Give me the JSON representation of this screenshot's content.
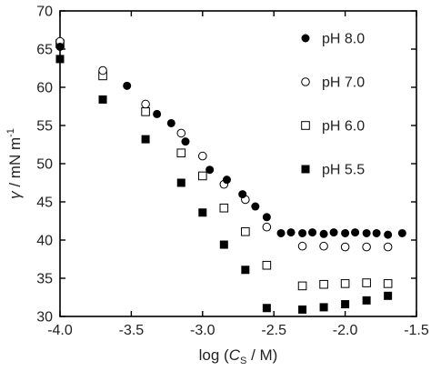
{
  "chart_data": {
    "type": "scatter",
    "xlabel": {
      "pre": "log (",
      "var": "C",
      "sub": "S",
      "post": " / M)"
    },
    "ylabel": {
      "var": "γ",
      "unit": " / mN m",
      "sup": "-1"
    },
    "xlim": [
      -4.0,
      -1.5
    ],
    "ylim": [
      30,
      70
    ],
    "x_ticks": [
      -4.0,
      -3.5,
      -3.0,
      -2.5,
      -2.0,
      -1.5
    ],
    "x_tick_labels": [
      "-4.0",
      "-3.5",
      "-3.0",
      "-2.5",
      "-2.0",
      "-1.5"
    ],
    "y_ticks": [
      30,
      35,
      40,
      45,
      50,
      55,
      60,
      65,
      70
    ],
    "y_tick_labels": [
      "30",
      "35",
      "40",
      "45",
      "50",
      "55",
      "60",
      "65",
      "70"
    ],
    "grid": false,
    "legend_position": "top-right",
    "series": [
      {
        "name": "pH 8.0",
        "marker": "filled-circle",
        "x": [
          -4.0,
          -3.53,
          -3.32,
          -3.22,
          -3.12,
          -2.95,
          -2.83,
          -2.72,
          -2.63,
          -2.55,
          -2.45,
          -2.38,
          -2.3,
          -2.23,
          -2.15,
          -2.08,
          -2.0,
          -1.93,
          -1.85,
          -1.78,
          -1.7,
          -1.6
        ],
        "y": [
          65.3,
          60.2,
          56.5,
          55.3,
          52.9,
          49.2,
          47.9,
          46.0,
          44.4,
          43.0,
          40.9,
          41.0,
          40.9,
          41.0,
          40.8,
          41.0,
          40.9,
          41.0,
          40.9,
          40.9,
          40.7,
          40.9
        ]
      },
      {
        "name": "pH 7.0",
        "marker": "open-circle",
        "x": [
          -4.0,
          -3.7,
          -3.4,
          -3.15,
          -3.0,
          -2.85,
          -2.7,
          -2.55,
          -2.3,
          -2.15,
          -2.0,
          -1.85,
          -1.7
        ],
        "y": [
          66.0,
          62.2,
          57.8,
          54.0,
          51.0,
          47.3,
          45.3,
          41.7,
          39.2,
          39.2,
          39.1,
          39.1,
          39.1
        ]
      },
      {
        "name": "pH 6.0",
        "marker": "open-square",
        "x": [
          -4.0,
          -3.7,
          -3.4,
          -3.15,
          -3.0,
          -2.85,
          -2.7,
          -2.55,
          -2.3,
          -2.15,
          -2.0,
          -1.85,
          -1.7
        ],
        "y": [
          65.7,
          61.5,
          56.8,
          51.4,
          48.4,
          44.2,
          41.1,
          36.7,
          34.0,
          34.2,
          34.3,
          34.4,
          34.3
        ]
      },
      {
        "name": "pH 5.5",
        "marker": "filled-square",
        "x": [
          -4.0,
          -3.7,
          -3.4,
          -3.15,
          -3.0,
          -2.85,
          -2.7,
          -2.55,
          -2.3,
          -2.15,
          -2.0,
          -1.85,
          -1.7
        ],
        "y": [
          63.7,
          58.4,
          53.2,
          47.5,
          43.6,
          39.4,
          36.1,
          31.1,
          30.9,
          31.2,
          31.6,
          32.1,
          32.7
        ]
      }
    ]
  }
}
